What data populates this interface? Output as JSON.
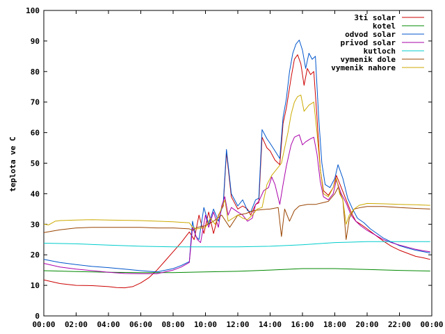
{
  "chart_data": {
    "type": "line",
    "title": "",
    "xlabel": "",
    "ylabel": "teplota ve C",
    "xlim": [
      0,
      24
    ],
    "ylim": [
      0,
      100
    ],
    "grid": false,
    "legend_position": "top-right",
    "y_ticks": [
      "0",
      "10",
      "20",
      "30",
      "40",
      "50",
      "60",
      "70",
      "80",
      "90",
      "100"
    ],
    "x_ticks": [
      "00:00",
      "02:00",
      "04:00",
      "06:00",
      "08:00",
      "10:00",
      "12:00",
      "14:00",
      "16:00",
      "18:00",
      "20:00",
      "22:00",
      "00:00"
    ],
    "series": [
      {
        "name": "3ti solar",
        "color": "#cc0000",
        "points": [
          [
            0,
            11.8
          ],
          [
            1,
            10.6
          ],
          [
            2,
            10
          ],
          [
            3,
            9.9
          ],
          [
            4,
            9.6
          ],
          [
            4.5,
            9.3
          ],
          [
            5,
            9.2
          ],
          [
            5.5,
            9.6
          ],
          [
            6,
            10.8
          ],
          [
            6.5,
            12.5
          ],
          [
            7,
            15
          ],
          [
            7.5,
            18
          ],
          [
            8,
            21
          ],
          [
            8.5,
            24
          ],
          [
            9,
            27.5
          ],
          [
            9.3,
            25
          ],
          [
            9.6,
            33
          ],
          [
            9.9,
            27
          ],
          [
            10.2,
            34
          ],
          [
            10.5,
            27
          ],
          [
            10.8,
            33
          ],
          [
            11.1,
            36
          ],
          [
            11.3,
            53.5
          ],
          [
            11.6,
            39
          ],
          [
            12,
            35
          ],
          [
            12.3,
            36
          ],
          [
            12.6,
            35
          ],
          [
            12.8,
            33
          ],
          [
            13.1,
            36.5
          ],
          [
            13.3,
            37
          ],
          [
            13.5,
            58.5
          ],
          [
            13.8,
            55
          ],
          [
            14,
            54
          ],
          [
            14.3,
            51
          ],
          [
            14.6,
            49.5
          ],
          [
            14.8,
            63
          ],
          [
            15,
            68
          ],
          [
            15.3,
            78
          ],
          [
            15.5,
            84
          ],
          [
            15.7,
            85.5
          ],
          [
            15.9,
            82.5
          ],
          [
            16.1,
            75.5
          ],
          [
            16.3,
            81
          ],
          [
            16.5,
            79
          ],
          [
            16.7,
            80
          ],
          [
            16.9,
            65
          ],
          [
            17.1,
            48
          ],
          [
            17.3,
            41
          ],
          [
            17.6,
            39.5
          ],
          [
            17.9,
            42
          ],
          [
            18.1,
            46
          ],
          [
            18.4,
            42
          ],
          [
            18.7,
            38
          ],
          [
            19,
            34
          ],
          [
            19.3,
            31
          ],
          [
            19.6,
            30
          ],
          [
            20,
            28.5
          ],
          [
            20.5,
            26.5
          ],
          [
            21,
            24.5
          ],
          [
            21.5,
            22.8
          ],
          [
            22,
            21.5
          ],
          [
            22.5,
            20.5
          ],
          [
            23,
            19.5
          ],
          [
            23.5,
            19
          ],
          [
            23.9,
            18.5
          ]
        ]
      },
      {
        "name": "kotel",
        "color": "#008800",
        "points": [
          [
            0,
            14.8
          ],
          [
            2,
            14.5
          ],
          [
            4,
            14.3
          ],
          [
            6,
            14.2
          ],
          [
            8,
            14.2
          ],
          [
            10,
            14.4
          ],
          [
            12,
            14.6
          ],
          [
            14,
            15
          ],
          [
            16,
            15.5
          ],
          [
            18,
            15.5
          ],
          [
            20,
            15.2
          ],
          [
            22,
            14.9
          ],
          [
            23.9,
            14.7
          ]
        ]
      },
      {
        "name": "odvod solar",
        "color": "#0055cc",
        "points": [
          [
            0,
            18.5
          ],
          [
            1,
            17.5
          ],
          [
            2,
            16.8
          ],
          [
            3,
            16.2
          ],
          [
            4,
            15.8
          ],
          [
            5,
            15.3
          ],
          [
            6,
            14.8
          ],
          [
            7,
            14.4
          ],
          [
            8,
            15.5
          ],
          [
            8.5,
            16.5
          ],
          [
            9,
            17.8
          ],
          [
            9.2,
            31
          ],
          [
            9.4,
            26
          ],
          [
            9.6,
            25
          ],
          [
            9.9,
            35.5
          ],
          [
            10.2,
            30
          ],
          [
            10.5,
            35
          ],
          [
            10.8,
            31
          ],
          [
            11.1,
            37
          ],
          [
            11.3,
            54.5
          ],
          [
            11.6,
            40
          ],
          [
            12,
            36
          ],
          [
            12.3,
            38
          ],
          [
            12.6,
            34.5
          ],
          [
            12.8,
            34
          ],
          [
            13.1,
            38
          ],
          [
            13.3,
            38.5
          ],
          [
            13.5,
            61
          ],
          [
            13.8,
            58
          ],
          [
            14,
            56.5
          ],
          [
            14.3,
            54
          ],
          [
            14.6,
            51.5
          ],
          [
            14.8,
            65
          ],
          [
            15,
            71
          ],
          [
            15.2,
            80
          ],
          [
            15.4,
            86
          ],
          [
            15.6,
            89
          ],
          [
            15.8,
            90.3
          ],
          [
            16,
            87
          ],
          [
            16.2,
            81
          ],
          [
            16.4,
            86
          ],
          [
            16.6,
            84
          ],
          [
            16.8,
            85
          ],
          [
            17,
            65
          ],
          [
            17.2,
            50
          ],
          [
            17.4,
            43
          ],
          [
            17.7,
            42
          ],
          [
            18,
            45
          ],
          [
            18.2,
            49.5
          ],
          [
            18.5,
            45
          ],
          [
            18.8,
            38.5
          ],
          [
            19.1,
            35
          ],
          [
            19.4,
            32
          ],
          [
            19.8,
            30.5
          ],
          [
            20.2,
            28.5
          ],
          [
            20.6,
            27
          ],
          [
            21,
            25.5
          ],
          [
            21.5,
            24.2
          ],
          [
            22,
            23
          ],
          [
            22.5,
            22.2
          ],
          [
            23,
            21.5
          ],
          [
            23.5,
            21
          ],
          [
            23.9,
            20.6
          ]
        ]
      },
      {
        "name": "privod solar",
        "color": "#aa00aa",
        "points": [
          [
            0,
            17.2
          ],
          [
            1,
            16
          ],
          [
            2,
            15.3
          ],
          [
            3,
            14.8
          ],
          [
            4,
            14.3
          ],
          [
            5,
            13.9
          ],
          [
            6,
            13.8
          ],
          [
            7,
            13.8
          ],
          [
            8,
            15
          ],
          [
            8.5,
            16
          ],
          [
            9,
            17.5
          ],
          [
            9.2,
            29
          ],
          [
            9.5,
            25
          ],
          [
            9.7,
            24
          ],
          [
            10,
            33
          ],
          [
            10.2,
            29
          ],
          [
            10.5,
            34
          ],
          [
            10.8,
            29
          ],
          [
            11,
            36
          ],
          [
            11.2,
            39
          ],
          [
            11.4,
            33
          ],
          [
            11.6,
            35.5
          ],
          [
            12,
            34
          ],
          [
            12.3,
            33
          ],
          [
            12.6,
            31
          ],
          [
            12.9,
            32
          ],
          [
            13.1,
            36.5
          ],
          [
            13.3,
            37.5
          ],
          [
            13.6,
            41
          ],
          [
            13.9,
            42
          ],
          [
            14.1,
            45.5
          ],
          [
            14.3,
            43
          ],
          [
            14.6,
            36.5
          ],
          [
            14.8,
            43
          ],
          [
            15,
            49
          ],
          [
            15.3,
            56
          ],
          [
            15.5,
            58.5
          ],
          [
            15.8,
            59.3
          ],
          [
            16,
            56
          ],
          [
            16.2,
            57
          ],
          [
            16.5,
            58
          ],
          [
            16.7,
            58.5
          ],
          [
            16.9,
            53
          ],
          [
            17.1,
            44
          ],
          [
            17.3,
            39
          ],
          [
            17.6,
            38
          ],
          [
            17.9,
            40
          ],
          [
            18.1,
            44.5
          ],
          [
            18.4,
            40
          ],
          [
            18.7,
            37
          ],
          [
            19,
            33
          ],
          [
            19.3,
            31
          ],
          [
            19.6,
            29.5
          ],
          [
            20,
            28
          ],
          [
            20.5,
            26.5
          ],
          [
            21,
            25
          ],
          [
            21.5,
            24
          ],
          [
            22,
            23.2
          ],
          [
            22.5,
            22.5
          ],
          [
            23,
            21.8
          ],
          [
            23.5,
            21.3
          ],
          [
            23.9,
            21
          ]
        ]
      },
      {
        "name": "kutloch",
        "color": "#00cccc",
        "points": [
          [
            0,
            23.8
          ],
          [
            2,
            23.6
          ],
          [
            4,
            23.2
          ],
          [
            6,
            22.8
          ],
          [
            8,
            22.6
          ],
          [
            10,
            22.6
          ],
          [
            12,
            22.6
          ],
          [
            14,
            22.8
          ],
          [
            16,
            23.3
          ],
          [
            18,
            24
          ],
          [
            20,
            24.3
          ],
          [
            22,
            24.3
          ],
          [
            23.9,
            24.3
          ]
        ]
      },
      {
        "name": "vymenik dole",
        "color": "#994400",
        "points": [
          [
            0,
            27.3
          ],
          [
            1,
            28.2
          ],
          [
            2,
            28.8
          ],
          [
            3,
            29
          ],
          [
            4,
            29
          ],
          [
            5,
            29
          ],
          [
            6,
            29
          ],
          [
            7,
            28.8
          ],
          [
            8,
            28.8
          ],
          [
            9,
            28.5
          ],
          [
            9.2,
            28
          ],
          [
            9.5,
            29
          ],
          [
            10,
            29.5
          ],
          [
            10.5,
            31
          ],
          [
            11,
            33
          ],
          [
            11.5,
            29
          ],
          [
            12,
            33
          ],
          [
            12.5,
            33.5
          ],
          [
            13,
            34.5
          ],
          [
            13.5,
            34.8
          ],
          [
            14,
            35
          ],
          [
            14.5,
            35.5
          ],
          [
            14.7,
            26
          ],
          [
            14.9,
            35
          ],
          [
            15.2,
            31
          ],
          [
            15.5,
            34.5
          ],
          [
            15.8,
            36
          ],
          [
            16.3,
            36.5
          ],
          [
            16.8,
            36.5
          ],
          [
            17.2,
            37
          ],
          [
            17.6,
            37.5
          ],
          [
            18,
            40
          ],
          [
            18.2,
            42
          ],
          [
            18.5,
            38
          ],
          [
            18.7,
            25
          ],
          [
            18.9,
            32
          ],
          [
            19.2,
            35
          ],
          [
            19.6,
            35.5
          ],
          [
            20,
            35.8
          ],
          [
            21,
            35.8
          ],
          [
            22,
            35.5
          ],
          [
            23,
            35.2
          ],
          [
            23.9,
            35
          ]
        ]
      },
      {
        "name": "vymenik nahore",
        "color": "#ccaa00",
        "points": [
          [
            0,
            30
          ],
          [
            0.3,
            29.8
          ],
          [
            0.7,
            31
          ],
          [
            1,
            31.2
          ],
          [
            2,
            31.4
          ],
          [
            3,
            31.5
          ],
          [
            4,
            31.4
          ],
          [
            5,
            31.3
          ],
          [
            6,
            31.2
          ],
          [
            7,
            31
          ],
          [
            8,
            30.8
          ],
          [
            9,
            30.5
          ],
          [
            9.2,
            29
          ],
          [
            9.5,
            28.5
          ],
          [
            10,
            29
          ],
          [
            10.3,
            32
          ],
          [
            10.6,
            30
          ],
          [
            10.9,
            34
          ],
          [
            11.2,
            38
          ],
          [
            11.4,
            31
          ],
          [
            11.7,
            32
          ],
          [
            12,
            33
          ],
          [
            12.3,
            32
          ],
          [
            12.6,
            31.5
          ],
          [
            12.9,
            33
          ],
          [
            13.2,
            35
          ],
          [
            13.5,
            35.5
          ],
          [
            13.8,
            43
          ],
          [
            14.1,
            46
          ],
          [
            14.4,
            48
          ],
          [
            14.7,
            50
          ],
          [
            14.9,
            55
          ],
          [
            15.1,
            60
          ],
          [
            15.3,
            66
          ],
          [
            15.5,
            70
          ],
          [
            15.7,
            71.8
          ],
          [
            15.9,
            72.3
          ],
          [
            16.1,
            67
          ],
          [
            16.4,
            69
          ],
          [
            16.7,
            70
          ],
          [
            16.9,
            60
          ],
          [
            17.1,
            48
          ],
          [
            17.3,
            40
          ],
          [
            17.6,
            39
          ],
          [
            17.9,
            42
          ],
          [
            18.1,
            45
          ],
          [
            18.3,
            40
          ],
          [
            18.5,
            38
          ],
          [
            18.7,
            30
          ],
          [
            18.9,
            33
          ],
          [
            19.2,
            35
          ],
          [
            19.5,
            36.2
          ],
          [
            20,
            36.8
          ],
          [
            21,
            36.7
          ],
          [
            22,
            36.5
          ],
          [
            23,
            36.4
          ],
          [
            23.9,
            36.2
          ]
        ]
      }
    ]
  }
}
